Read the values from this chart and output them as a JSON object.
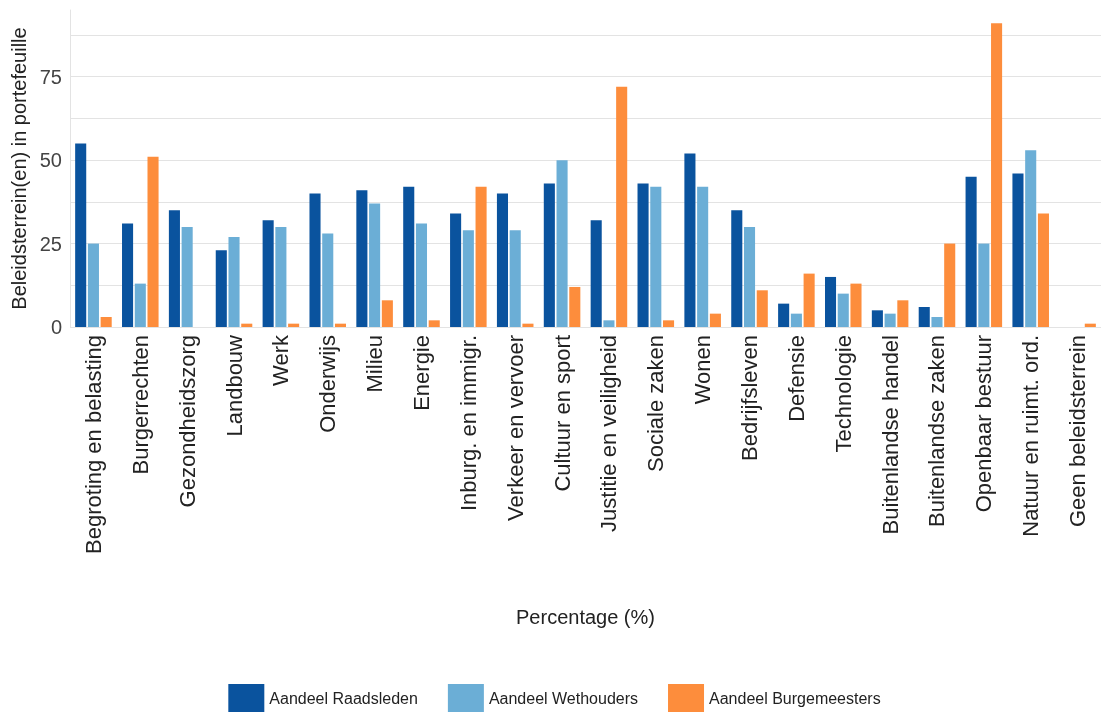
{
  "chart_data": {
    "type": "bar",
    "xlabel": "Percentage (%)",
    "ylabel": "Beleidsterrein(en) in portefeuille",
    "categories": [
      "Begroting en belasting",
      "Burgerrechten",
      "Gezondheidszorg",
      "Landbouw",
      "Werk",
      "Onderwijs",
      "Milieu",
      "Energie",
      "Inburg. en immigr.",
      "Verkeer en vervoer",
      "Cultuur en sport",
      "Justitie en veiligheid",
      "Sociale zaken",
      "Wonen",
      "Bedrijfsleven",
      "Defensie",
      "Technologie",
      "Buitenlandse handel",
      "Buitenlandse zaken",
      "Openbaar bestuur",
      "Natuur en ruimt. ord.",
      "Geen beleidsterrein"
    ],
    "series": [
      {
        "name": "Aandeel Raadsleden",
        "color": "#0a539e",
        "values": [
          55,
          31,
          35,
          23,
          32,
          40,
          41,
          42,
          34,
          40,
          43,
          32,
          43,
          52,
          35,
          7,
          15,
          5,
          6,
          45,
          46,
          0
        ]
      },
      {
        "name": "Aandeel Wethouders",
        "color": "#6baed6",
        "values": [
          25,
          13,
          30,
          27,
          30,
          28,
          37,
          31,
          29,
          29,
          50,
          2,
          42,
          42,
          30,
          4,
          10,
          4,
          3,
          25,
          53,
          0
        ]
      },
      {
        "name": "Aandeel Burgemeesters",
        "color": "#fd8d3c",
        "values": [
          3,
          51,
          0,
          1,
          1,
          1,
          8,
          2,
          42,
          1,
          12,
          72,
          2,
          4,
          11,
          16,
          13,
          8,
          25,
          91,
          34,
          1
        ]
      }
    ],
    "yticks": [
      0,
      {
        "value": 12.5,
        "label": null
      },
      25,
      {
        "value": 37.5,
        "label": null
      },
      50,
      {
        "value": 62.5,
        "label": null
      },
      75,
      {
        "value": 87.5,
        "label": null
      }
    ],
    "ylim": [
      0,
      95
    ],
    "grid": "y",
    "legend": "bottom"
  }
}
